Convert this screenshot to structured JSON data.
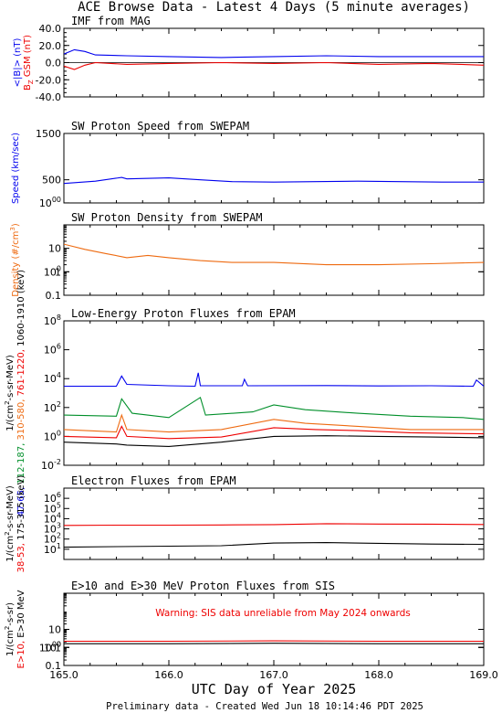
{
  "chart_data": {
    "title": "ACE Browse Data - Latest 4 Days (5 minute averages)",
    "xlabel": "UTC Day of Year 2025",
    "footer": "Preliminary data - Created Wed Jun 18 10:14:46 PDT 2025",
    "x_ticks": [
      "165.0",
      "166.0",
      "167.0",
      "168.0",
      "169.0"
    ],
    "xlim": [
      165.0,
      169.0
    ],
    "colors": {
      "blue": "#0000ee",
      "red": "#ee0000",
      "green": "#008f2a",
      "orange": "#ee6a10",
      "black": "#000000"
    },
    "panels": [
      {
        "title": "IMF from MAG",
        "type": "line",
        "y_scale": "linear",
        "ylim": [
          -40,
          40
        ],
        "y_ticks": [
          "-40.0",
          "-20.0",
          "0.0",
          "20.0",
          "40.0"
        ],
        "ylabel_parts": [
          {
            "text": "<|B|> (nT)",
            "color": "blue"
          },
          {
            "text": "B",
            "sub": "Z",
            "tail": " GSM (nT)",
            "color": "red"
          }
        ],
        "series": [
          {
            "name": "|B|",
            "color": "blue",
            "points": [
              [
                165.0,
                10
              ],
              [
                165.1,
                15
              ],
              [
                165.2,
                13
              ],
              [
                165.3,
                9
              ],
              [
                165.6,
                8
              ],
              [
                166.0,
                7
              ],
              [
                166.5,
                6
              ],
              [
                167.0,
                7
              ],
              [
                167.5,
                8
              ],
              [
                168.0,
                7
              ],
              [
                168.5,
                7
              ],
              [
                169.0,
                7
              ]
            ]
          },
          {
            "name": "Bz",
            "color": "red",
            "points": [
              [
                165.0,
                -4
              ],
              [
                165.1,
                -8
              ],
              [
                165.2,
                -3
              ],
              [
                165.3,
                0
              ],
              [
                165.6,
                -2
              ],
              [
                166.0,
                -1
              ],
              [
                166.5,
                0
              ],
              [
                167.0,
                -1
              ],
              [
                167.5,
                0
              ],
              [
                168.0,
                -2
              ],
              [
                168.5,
                -1
              ],
              [
                169.0,
                -3
              ]
            ]
          }
        ]
      },
      {
        "title": "SW Proton Speed from SWEPAM",
        "type": "line",
        "y_scale": "linear",
        "ylim": [
          0,
          1500
        ],
        "y_ticks": [
          "500",
          "1000",
          "1500"
        ],
        "ylabel_parts": [
          {
            "text": "Speed (km/sec)",
            "color": "blue"
          }
        ],
        "series": [
          {
            "name": "Speed",
            "color": "blue",
            "points": [
              [
                165.0,
                420
              ],
              [
                165.3,
                470
              ],
              [
                165.55,
                550
              ],
              [
                165.6,
                520
              ],
              [
                166.0,
                540
              ],
              [
                166.3,
                500
              ],
              [
                166.6,
                460
              ],
              [
                167.0,
                450
              ],
              [
                167.4,
                460
              ],
              [
                167.8,
                470
              ],
              [
                168.2,
                460
              ],
              [
                168.6,
                450
              ],
              [
                169.0,
                450
              ]
            ]
          }
        ]
      },
      {
        "title": "SW Proton Density from SWEPAM",
        "type": "line",
        "y_scale": "log",
        "ylim": [
          0.1,
          100
        ],
        "y_ticks": [
          "0.1",
          "1",
          "10",
          "100"
        ],
        "ylabel_parts": [
          {
            "text": "Density (#/cm",
            "sup": "3",
            "tail": ")",
            "color": "orange"
          }
        ],
        "series": [
          {
            "name": "Density",
            "color": "orange",
            "points": [
              [
                165.0,
                15
              ],
              [
                165.2,
                9
              ],
              [
                165.4,
                6
              ],
              [
                165.6,
                4
              ],
              [
                165.8,
                5
              ],
              [
                166.0,
                4
              ],
              [
                166.3,
                3
              ],
              [
                166.6,
                2.5
              ],
              [
                167.0,
                2.5
              ],
              [
                167.5,
                2
              ],
              [
                168.0,
                2
              ],
              [
                168.5,
                2.2
              ],
              [
                169.0,
                2.5
              ]
            ]
          }
        ]
      },
      {
        "title": "Low-Energy Proton Fluxes from EPAM",
        "type": "line",
        "y_scale": "log",
        "ylim": [
          0.01,
          100000000
        ],
        "y_ticks": [
          "10-2",
          "100",
          "102",
          "104",
          "106",
          "108"
        ],
        "ylabel_parts": [
          {
            "text": "1/(cm",
            "sup": "2",
            "tail": "-s-sr-MeV)",
            "color": "black"
          },
          {
            "text": "47-65,",
            "color": "blue"
          },
          {
            "text": "112-187,",
            "color": "green"
          },
          {
            "text": "310-580,",
            "color": "orange"
          },
          {
            "text": "761-1220,",
            "color": "red"
          },
          {
            "text": "1060-1910 (keV)",
            "color": "black"
          }
        ],
        "series": [
          {
            "name": "47-65",
            "color": "blue",
            "points": [
              [
                165.0,
                3000
              ],
              [
                165.5,
                3000
              ],
              [
                165.55,
                15000
              ],
              [
                165.6,
                4000
              ],
              [
                166.0,
                3200
              ],
              [
                166.25,
                3000
              ],
              [
                166.28,
                25000
              ],
              [
                166.3,
                3200
              ],
              [
                166.7,
                3200
              ],
              [
                166.72,
                9000
              ],
              [
                166.75,
                3200
              ],
              [
                167.5,
                3300
              ],
              [
                168.0,
                3100
              ],
              [
                168.5,
                3200
              ],
              [
                168.9,
                3000
              ],
              [
                168.93,
                8000
              ],
              [
                169.0,
                3000
              ]
            ]
          },
          {
            "name": "112-187",
            "color": "green",
            "points": [
              [
                165.0,
                30
              ],
              [
                165.5,
                25
              ],
              [
                165.55,
                400
              ],
              [
                165.65,
                40
              ],
              [
                166.0,
                20
              ],
              [
                166.3,
                500
              ],
              [
                166.35,
                30
              ],
              [
                166.8,
                50
              ],
              [
                167.0,
                150
              ],
              [
                167.3,
                70
              ],
              [
                167.8,
                40
              ],
              [
                168.3,
                25
              ],
              [
                168.8,
                20
              ],
              [
                169.0,
                15
              ]
            ]
          },
          {
            "name": "310-580",
            "color": "orange",
            "points": [
              [
                165.0,
                3
              ],
              [
                165.5,
                2
              ],
              [
                165.55,
                30
              ],
              [
                165.6,
                3
              ],
              [
                166.0,
                2
              ],
              [
                166.5,
                3
              ],
              [
                167.0,
                15
              ],
              [
                167.3,
                8
              ],
              [
                167.8,
                5
              ],
              [
                168.3,
                3
              ],
              [
                169.0,
                3
              ]
            ]
          },
          {
            "name": "761-1220",
            "color": "red",
            "points": [
              [
                165.0,
                1
              ],
              [
                165.5,
                0.8
              ],
              [
                165.55,
                5
              ],
              [
                165.6,
                1
              ],
              [
                166.0,
                0.7
              ],
              [
                166.5,
                0.9
              ],
              [
                167.0,
                4
              ],
              [
                167.4,
                3
              ],
              [
                167.8,
                2.5
              ],
              [
                168.3,
                1.8
              ],
              [
                169.0,
                1.5
              ]
            ]
          },
          {
            "name": "1060-1910",
            "color": "black",
            "points": [
              [
                165.0,
                0.4
              ],
              [
                165.5,
                0.3
              ],
              [
                165.6,
                0.25
              ],
              [
                166.0,
                0.2
              ],
              [
                166.5,
                0.4
              ],
              [
                167.0,
                1
              ],
              [
                167.5,
                1.1
              ],
              [
                168.0,
                1
              ],
              [
                168.5,
                0.9
              ],
              [
                169.0,
                0.8
              ]
            ]
          }
        ]
      },
      {
        "title": "Electron Fluxes from EPAM",
        "type": "line",
        "y_scale": "log",
        "ylim": [
          1,
          10000000
        ],
        "y_ticks": [
          "101",
          "102",
          "103",
          "104",
          "105",
          "106"
        ],
        "ylabel_parts": [
          {
            "text": "1/(cm",
            "sup": "2",
            "tail": "-s-sr-MeV)",
            "color": "black"
          },
          {
            "text": "38-53,",
            "color": "red"
          },
          {
            "text": "175-315 (keV)",
            "color": "black"
          }
        ],
        "series": [
          {
            "name": "38-53",
            "color": "red",
            "points": [
              [
                165.0,
                2200
              ],
              [
                165.5,
                2300
              ],
              [
                166.0,
                2300
              ],
              [
                166.5,
                2400
              ],
              [
                167.0,
                2600
              ],
              [
                167.5,
                3200
              ],
              [
                168.0,
                3000
              ],
              [
                168.5,
                2900
              ],
              [
                169.0,
                2700
              ]
            ]
          },
          {
            "name": "175-315",
            "color": "black",
            "points": [
              [
                165.0,
                16
              ],
              [
                165.5,
                18
              ],
              [
                166.0,
                20
              ],
              [
                166.5,
                22
              ],
              [
                167.0,
                40
              ],
              [
                167.5,
                45
              ],
              [
                168.0,
                38
              ],
              [
                168.5,
                32
              ],
              [
                169.0,
                30
              ]
            ]
          }
        ]
      },
      {
        "title": "E>10 and E>30 MeV Proton Fluxes from SIS",
        "type": "line",
        "y_scale": "log",
        "ylim": [
          0.1,
          1000
        ],
        "y_ticks": [
          "0.1",
          "1",
          "10",
          "100",
          "1000"
        ],
        "annotation": "Warning: SIS data unreliable from May 2024 onwards",
        "ylabel_parts": [
          {
            "text": "1/(cm",
            "sup": "2",
            "tail": "-s-sr)",
            "color": "black"
          },
          {
            "text": "E>10,",
            "color": "red"
          },
          {
            "text": "E>30 MeV",
            "color": "black"
          }
        ],
        "series": [
          {
            "name": "E>10",
            "color": "red",
            "points": [
              [
                165.0,
                2.2
              ],
              [
                166.0,
                2.2
              ],
              [
                167.0,
                2.3
              ],
              [
                168.0,
                2.2
              ],
              [
                169.0,
                2.2
              ]
            ]
          },
          {
            "name": "E>30",
            "color": "black",
            "points": [
              [
                165.0,
                1.6
              ],
              [
                166.0,
                1.6
              ],
              [
                167.0,
                1.7
              ],
              [
                168.0,
                1.6
              ],
              [
                169.0,
                1.6
              ]
            ]
          }
        ]
      }
    ]
  }
}
